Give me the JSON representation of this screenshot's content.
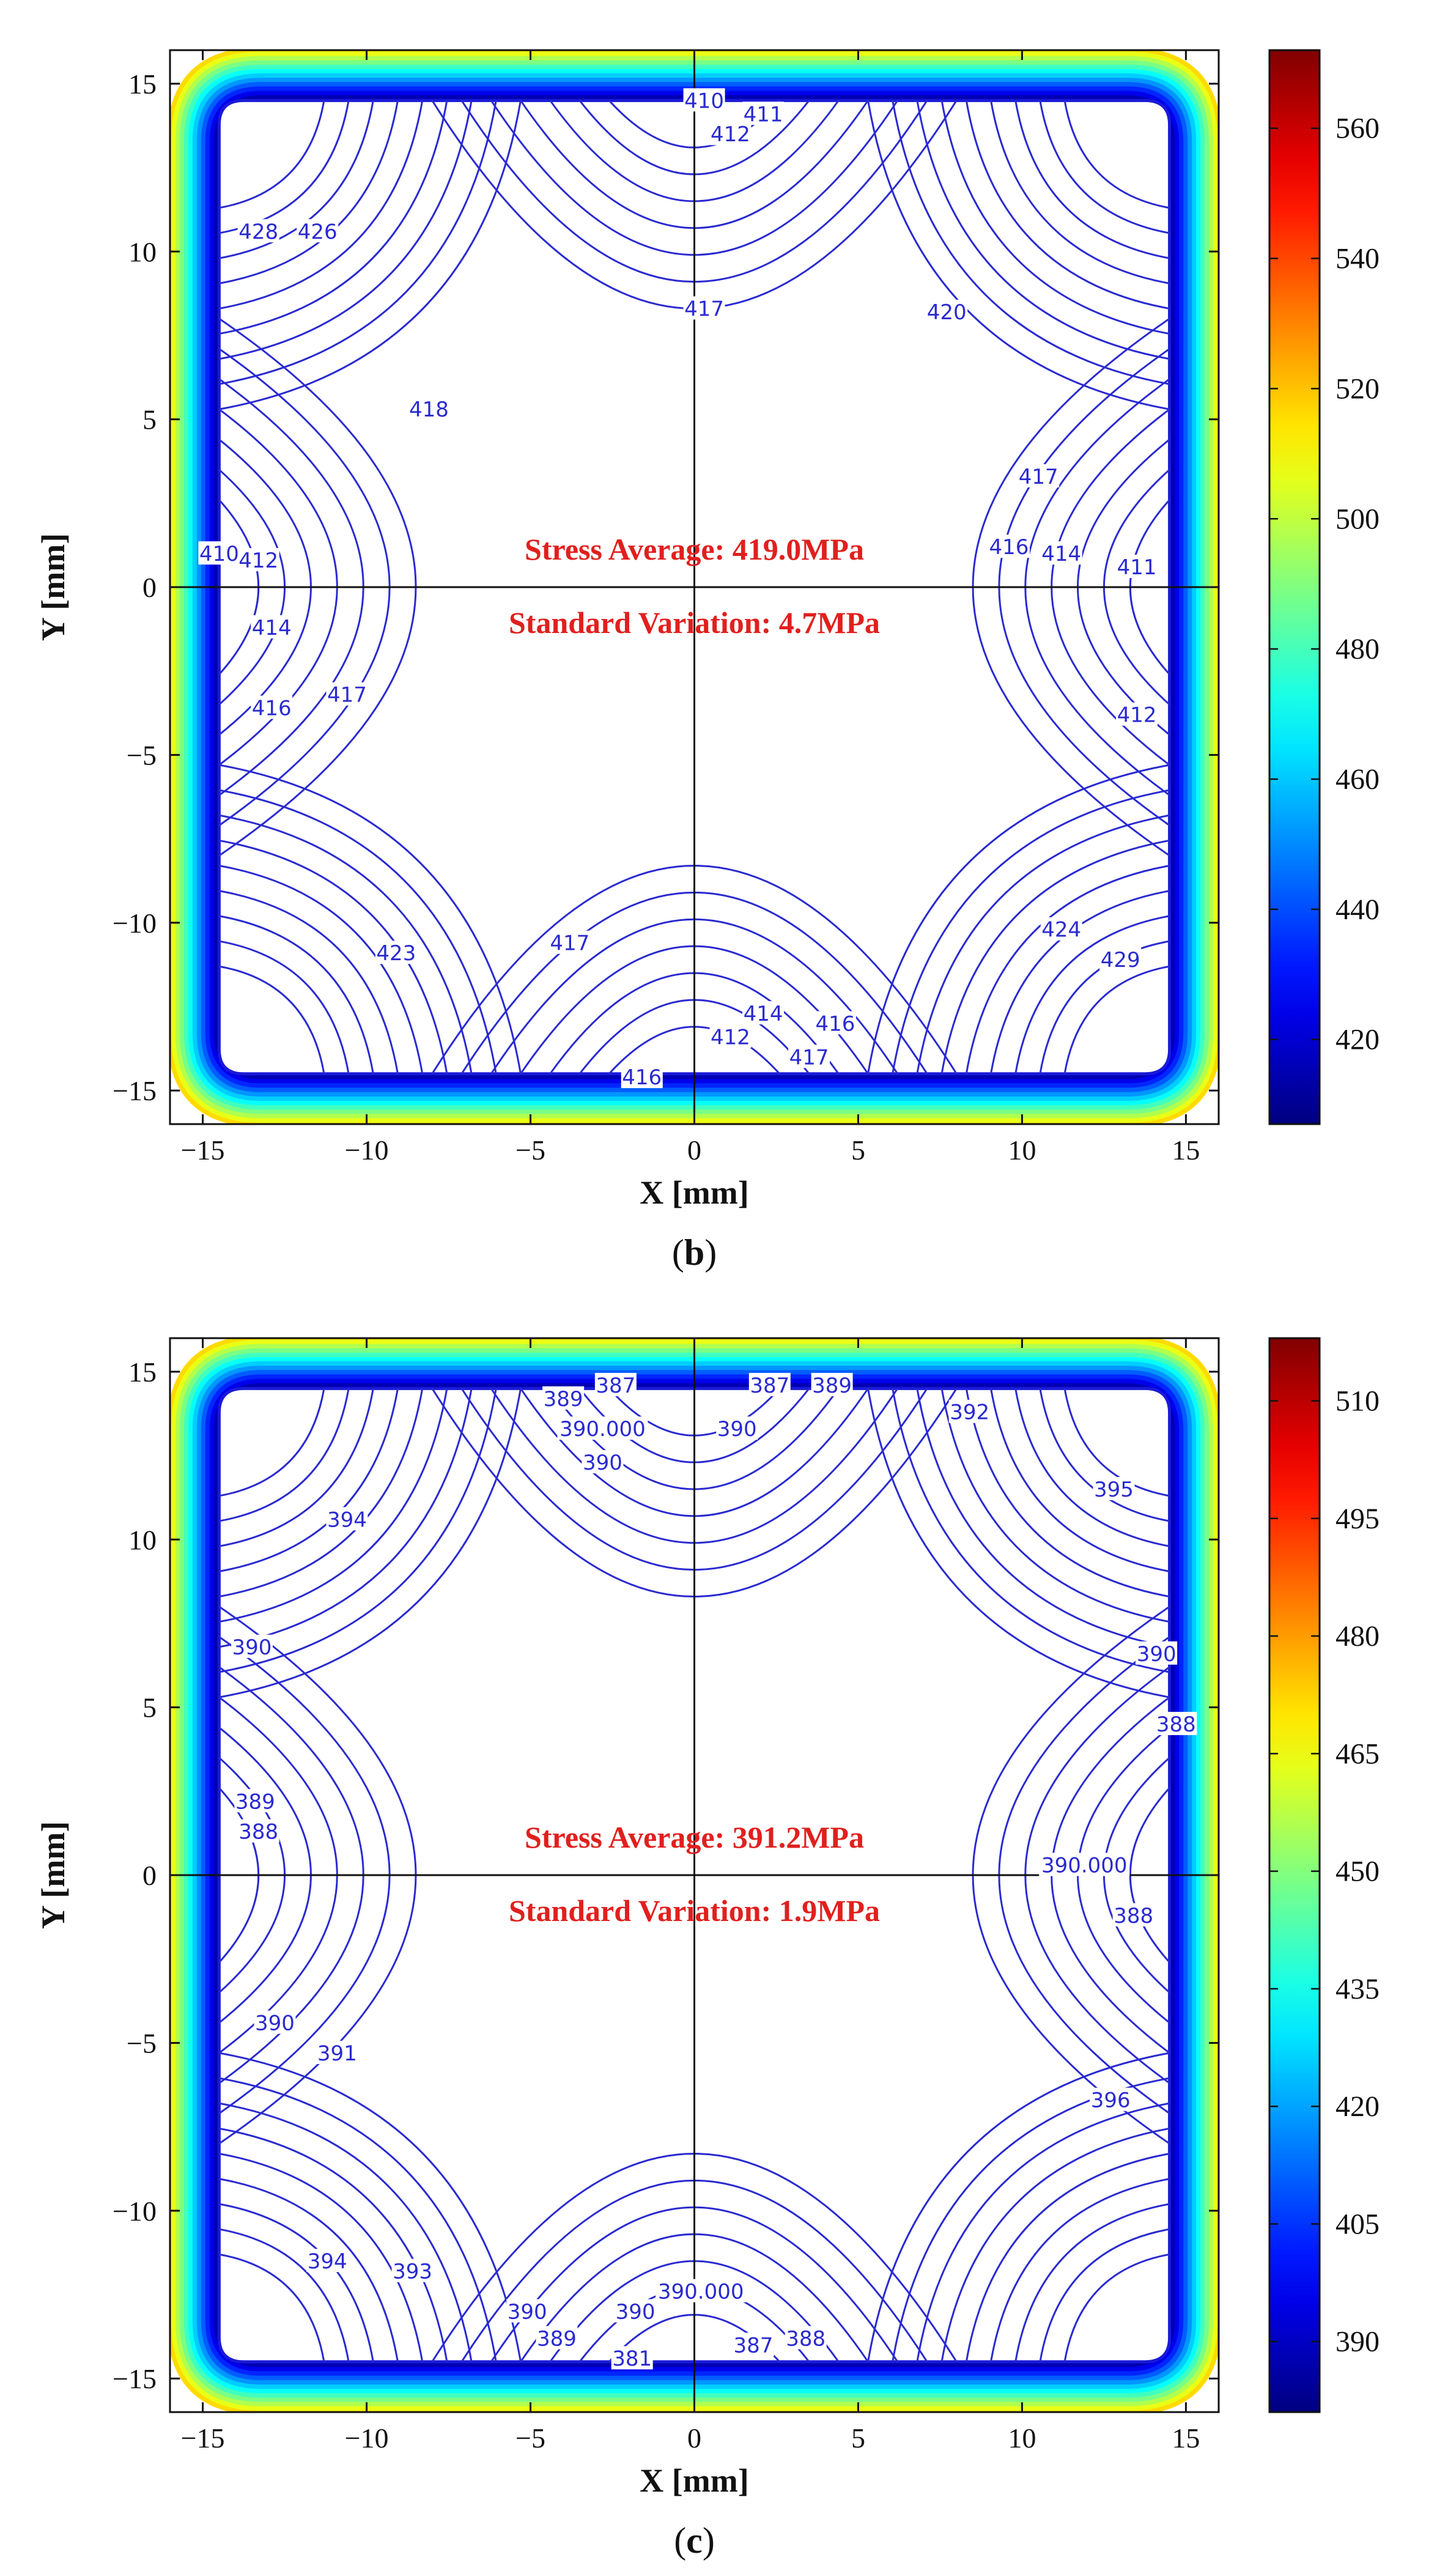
{
  "chart_data": [
    {
      "type": "contour",
      "panel_label": "(b)",
      "panel_letter": "b",
      "xlabel": "X [mm]",
      "ylabel": "Y [mm]",
      "xlim": [
        -16,
        16
      ],
      "ylim": [
        -16,
        16
      ],
      "xticks": [
        -15,
        -10,
        -5,
        0,
        5,
        10,
        15
      ],
      "yticks": [
        -15,
        -10,
        -5,
        0,
        5,
        10,
        15
      ],
      "grid": true,
      "colorbar": {
        "min": 407,
        "max": 572,
        "ticks": [
          420,
          440,
          460,
          480,
          500,
          520,
          540,
          560
        ]
      },
      "annotations": [
        "Stress Average: 419.0MPa",
        "Standard Variation: 4.7MPa"
      ],
      "contour_labels": [
        {
          "text": "410",
          "x": 0.3,
          "y": 14.5
        },
        {
          "text": "411",
          "x": 2.1,
          "y": 14.1
        },
        {
          "text": "412",
          "x": 1.1,
          "y": 13.5
        },
        {
          "text": "428",
          "x": -13.3,
          "y": 10.6
        },
        {
          "text": "426",
          "x": -11.5,
          "y": 10.6
        },
        {
          "text": "417",
          "x": 0.3,
          "y": 8.3
        },
        {
          "text": "420",
          "x": 7.7,
          "y": 8.2
        },
        {
          "text": "418",
          "x": -8.1,
          "y": 5.3
        },
        {
          "text": "417",
          "x": 10.5,
          "y": 3.3
        },
        {
          "text": "410",
          "x": -14.5,
          "y": 1.0
        },
        {
          "text": "412",
          "x": -13.3,
          "y": 0.8
        },
        {
          "text": "416",
          "x": 9.6,
          "y": 1.2
        },
        {
          "text": "414",
          "x": 11.2,
          "y": 1.0
        },
        {
          "text": "411",
          "x": 13.5,
          "y": 0.6
        },
        {
          "text": "414",
          "x": -12.9,
          "y": -1.2
        },
        {
          "text": "417",
          "x": -10.6,
          "y": -3.2
        },
        {
          "text": "416",
          "x": -12.9,
          "y": -3.6
        },
        {
          "text": "412",
          "x": 13.5,
          "y": -3.8
        },
        {
          "text": "423",
          "x": -9.1,
          "y": -10.9
        },
        {
          "text": "417",
          "x": -3.8,
          "y": -10.6
        },
        {
          "text": "424",
          "x": 11.2,
          "y": -10.2
        },
        {
          "text": "429",
          "x": 13.0,
          "y": -11.1
        },
        {
          "text": "414",
          "x": 2.1,
          "y": -12.7
        },
        {
          "text": "416",
          "x": 4.3,
          "y": -13.0
        },
        {
          "text": "412",
          "x": 1.1,
          "y": -13.4
        },
        {
          "text": "417",
          "x": 3.5,
          "y": -14.0
        },
        {
          "text": "416",
          "x": -1.6,
          "y": -14.6
        }
      ]
    },
    {
      "type": "contour",
      "panel_label": "(c)",
      "panel_letter": "c",
      "xlabel": "X [mm]",
      "ylabel": "Y [mm]",
      "xlim": [
        -16,
        16
      ],
      "ylim": [
        -16,
        16
      ],
      "xticks": [
        -15,
        -10,
        -5,
        0,
        5,
        10,
        15
      ],
      "yticks": [
        -15,
        -10,
        -5,
        0,
        5,
        10,
        15
      ],
      "grid": true,
      "colorbar": {
        "min": 381,
        "max": 518,
        "ticks": [
          390,
          405,
          420,
          435,
          450,
          465,
          480,
          495,
          510
        ]
      },
      "annotations": [
        "Stress Average: 391.2MPa",
        "Standard Variation: 1.9MPa"
      ],
      "contour_labels": [
        {
          "text": "389",
          "x": -4.0,
          "y": 14.2
        },
        {
          "text": "387",
          "x": -2.4,
          "y": 14.6
        },
        {
          "text": "387",
          "x": 2.3,
          "y": 14.6
        },
        {
          "text": "389",
          "x": 4.2,
          "y": 14.6
        },
        {
          "text": "390.000",
          "x": -2.8,
          "y": 13.3
        },
        {
          "text": "390",
          "x": 1.3,
          "y": 13.3
        },
        {
          "text": "390",
          "x": -2.8,
          "y": 12.3
        },
        {
          "text": "392",
          "x": 8.4,
          "y": 13.8
        },
        {
          "text": "395",
          "x": 12.8,
          "y": 11.5
        },
        {
          "text": "394",
          "x": -10.6,
          "y": 10.6
        },
        {
          "text": "390",
          "x": -13.5,
          "y": 6.8
        },
        {
          "text": "389",
          "x": -13.4,
          "y": 2.2
        },
        {
          "text": "388",
          "x": -13.3,
          "y": 1.3
        },
        {
          "text": "390",
          "x": 14.1,
          "y": 6.6
        },
        {
          "text": "388",
          "x": 14.7,
          "y": 4.5
        },
        {
          "text": "390.000",
          "x": 11.9,
          "y": 0.3
        },
        {
          "text": "388",
          "x": 13.4,
          "y": -1.2
        },
        {
          "text": "390",
          "x": -12.8,
          "y": -4.4
        },
        {
          "text": "391",
          "x": -10.9,
          "y": -5.3
        },
        {
          "text": "396",
          "x": 12.7,
          "y": -6.7
        },
        {
          "text": "394",
          "x": -11.2,
          "y": -11.5
        },
        {
          "text": "393",
          "x": -8.6,
          "y": -11.8
        },
        {
          "text": "390",
          "x": -5.1,
          "y": -13.0
        },
        {
          "text": "390",
          "x": -1.8,
          "y": -13.0
        },
        {
          "text": "389",
          "x": -4.2,
          "y": -13.8
        },
        {
          "text": "390.000",
          "x": 0.2,
          "y": -12.4
        },
        {
          "text": "381",
          "x": -1.9,
          "y": -14.4
        },
        {
          "text": "387",
          "x": 1.8,
          "y": -14.0
        },
        {
          "text": "388",
          "x": 3.4,
          "y": -13.8
        }
      ]
    }
  ]
}
